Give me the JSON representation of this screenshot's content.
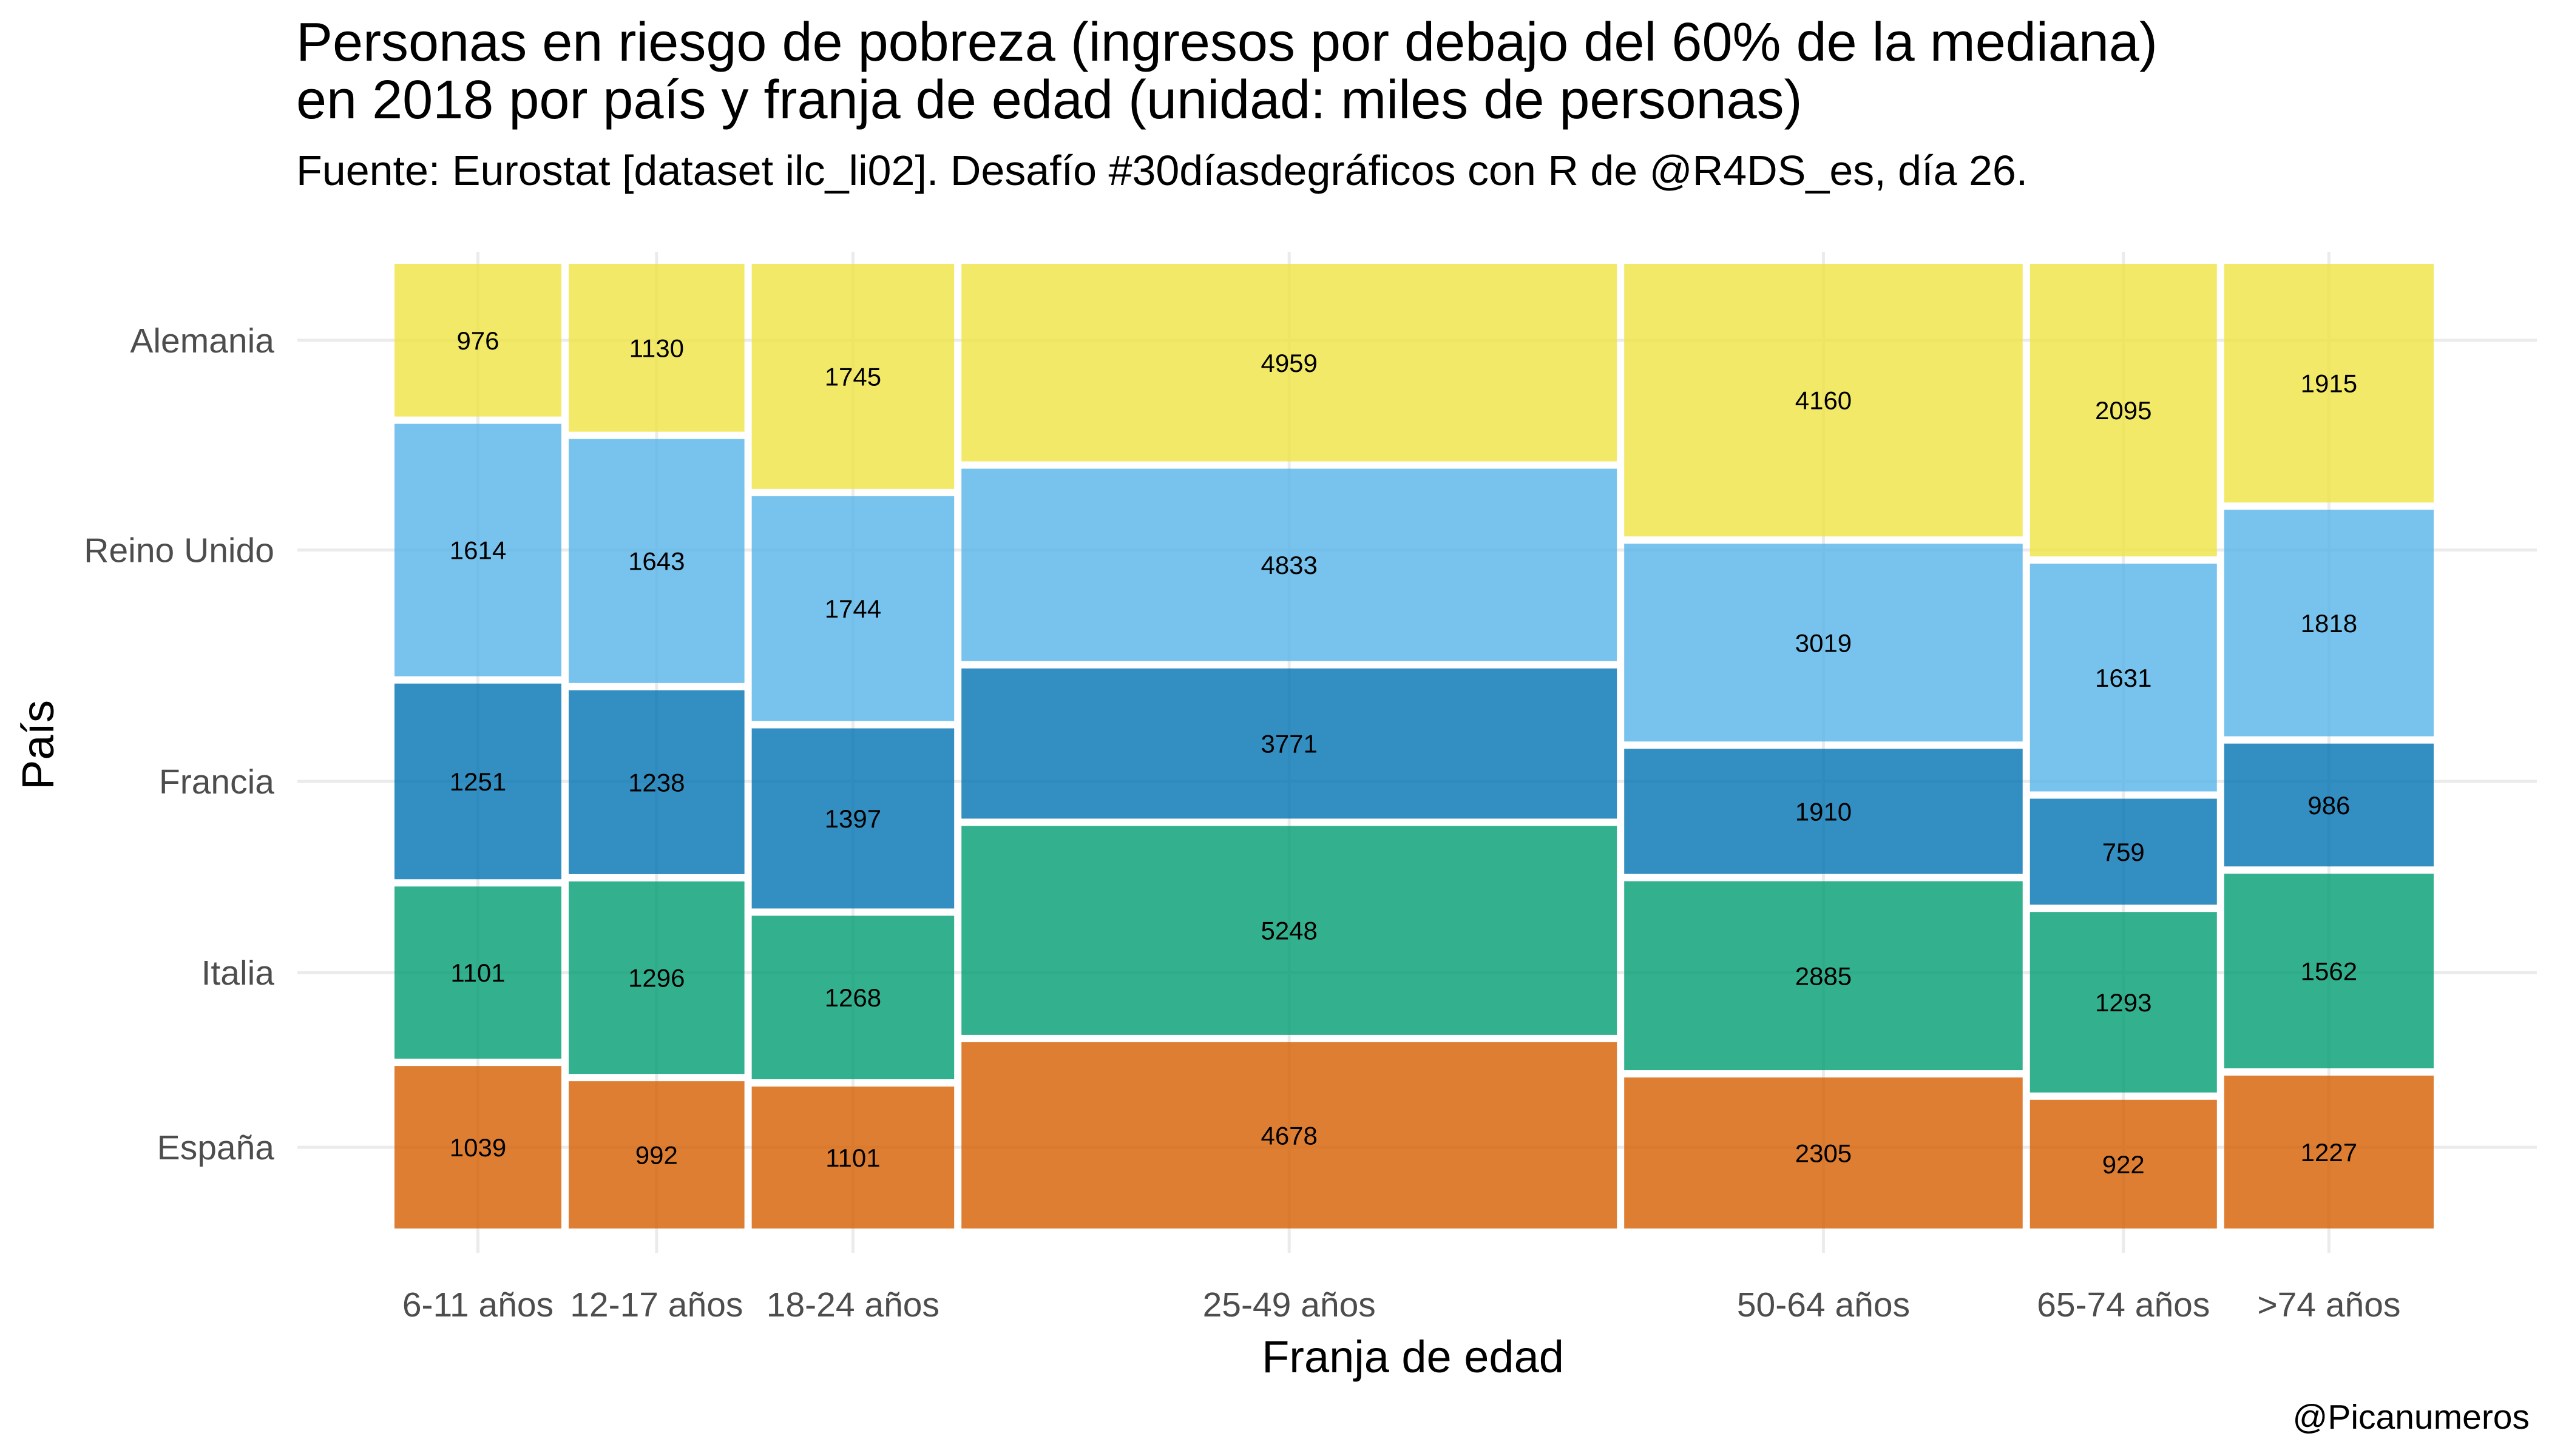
{
  "chart_data": {
    "type": "mosaic",
    "title": "Personas en riesgo de pobreza (ingresos por debajo del 60% de la mediana)\nen 2018 por país y franja de edad (unidad: miles de personas)",
    "subtitle": "Fuente: Eurostat [dataset ilc_li02]. Desafío #30díasdegráficos con R de @R4DS_es, día 26.",
    "xlabel": "Franja de edad",
    "ylabel": "País",
    "caption": "@Picanumeros",
    "categories": [
      "6-11 años",
      "12-17 años",
      "18-24 años",
      "25-49 años",
      "50-64 años",
      "65-74 años",
      ">74 años"
    ],
    "y_tick_labels": [
      "Alemania",
      "Reino Unido",
      "Francia",
      "Italia",
      "España"
    ],
    "grid": true,
    "series": [
      {
        "name": "España",
        "color": "#D55E00",
        "values": [
          1039,
          992,
          1101,
          4678,
          2305,
          922,
          1227
        ]
      },
      {
        "name": "Italia",
        "color": "#009E73",
        "values": [
          1101,
          1296,
          1268,
          5248,
          2885,
          1293,
          1562
        ]
      },
      {
        "name": "Francia",
        "color": "#0072B2",
        "values": [
          1251,
          1238,
          1397,
          3771,
          1910,
          759,
          986
        ]
      },
      {
        "name": "Reino Unido",
        "color": "#56B4E9",
        "values": [
          1614,
          1643,
          1744,
          4833,
          3019,
          1631,
          1818
        ]
      },
      {
        "name": "Alemania",
        "color": "#F0E442",
        "values": [
          976,
          1130,
          1745,
          4959,
          4160,
          2095,
          1915
        ]
      }
    ]
  }
}
